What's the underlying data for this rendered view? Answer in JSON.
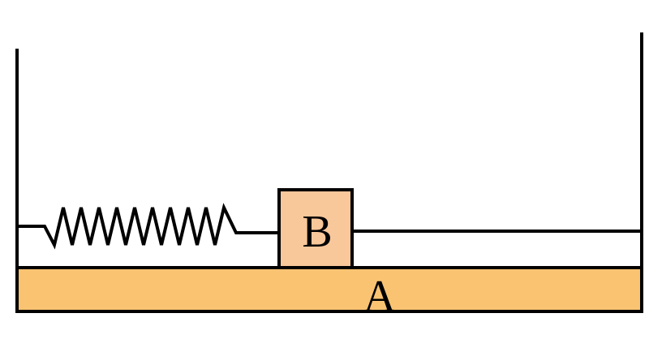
{
  "labels": {
    "plate": "A",
    "block": "B"
  },
  "colors": {
    "plate_fill": "#FAC372",
    "block_fill": "#F8C79A",
    "stroke": "#000000",
    "background": "#FFFFFF"
  }
}
